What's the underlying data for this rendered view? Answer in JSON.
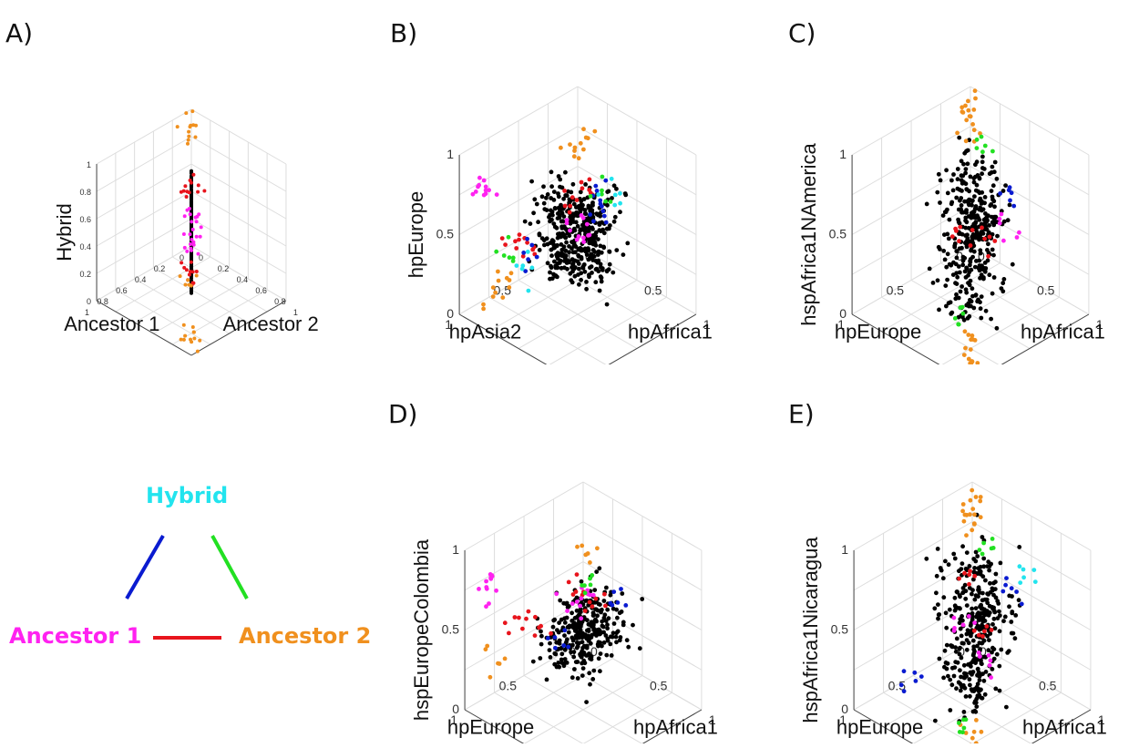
{
  "colors": {
    "black": "#000000",
    "red": "#e8141c",
    "magenta": "#ff22f0",
    "orange": "#f0901e",
    "blue": "#0a1bd0",
    "green": "#22e022",
    "cyan": "#22e4ee",
    "grid": "#dddddd",
    "axis": "#444444"
  },
  "panels": {
    "A": {
      "letter": "A)",
      "zlabel": "Hybrid",
      "xlabel": "Ancestor 1",
      "ylabel": "Ancestor 2",
      "zticks": [
        "0",
        "0.2",
        "0.4",
        "0.6",
        "0.8",
        "1"
      ],
      "xticks": [
        "0",
        "0.2",
        "0.4",
        "0.6",
        "0.8",
        "1"
      ],
      "yticks": [
        "0",
        "0.2",
        "0.4",
        "0.6",
        "0.8",
        "1"
      ]
    },
    "B": {
      "letter": "B)",
      "zlabel": "hpEurope",
      "xlabel": "hpAsia2",
      "ylabel": "hpAfrica1",
      "zticks": [
        "0",
        "0.5",
        "1"
      ],
      "xticks": [
        "0",
        "0.5",
        "1"
      ],
      "yticks": [
        "0",
        "0.5",
        "1"
      ]
    },
    "C": {
      "letter": "C)",
      "zlabel": "hspAfrica1NAmerica",
      "xlabel": "hpEurope",
      "ylabel": "hpAfrica1",
      "zticks": [
        "0",
        "0.5",
        "1"
      ],
      "xticks": [
        "0",
        "0.5",
        "1"
      ],
      "yticks": [
        "0",
        "0.5",
        "1"
      ]
    },
    "D": {
      "letter": "D)",
      "zlabel": "hspEuropeColombia",
      "xlabel": "hpEurope",
      "ylabel": "hpAfrica1",
      "zticks": [
        "0",
        "0.5",
        "1"
      ],
      "xticks": [
        "0",
        "0.5",
        "1"
      ],
      "yticks": [
        "0",
        "0.5",
        "1"
      ]
    },
    "E": {
      "letter": "E)",
      "zlabel": "hspAfrica1Nicaragua",
      "xlabel": "hpEurope",
      "ylabel": "hpAfrica1",
      "zticks": [
        "0",
        "0.5",
        "1"
      ],
      "xticks": [
        "0",
        "0.5",
        "1"
      ],
      "yticks": [
        "0",
        "0.5",
        "1"
      ]
    }
  },
  "legend": {
    "hybrid": "Hybrid",
    "ancestor1": "Ancestor 1",
    "ancestor2": "Ancestor 2"
  },
  "chart_data": [
    {
      "panel": "A",
      "type": "scatter",
      "subtype": "3d-scatter",
      "x_label": "Ancestor 1",
      "y_label": "Ancestor 2",
      "z_label": "Hybrid",
      "xlim": [
        0,
        1
      ],
      "ylim": [
        0,
        1
      ],
      "zlim": [
        0,
        1
      ],
      "grid": true,
      "series": [
        {
          "color": "black",
          "points": [
            [
              0.45,
              0.45,
              0.5
            ],
            [
              0.5,
              0.5,
              0.5
            ],
            [
              0.55,
              0.55,
              0.5
            ],
            [
              0.3,
              0.3,
              0.5
            ],
            [
              0.7,
              0.7,
              0.5
            ],
            [
              0.4,
              0.4,
              0.6
            ],
            [
              0.6,
              0.6,
              0.4
            ],
            [
              0.35,
              0.35,
              0.7
            ],
            [
              0.65,
              0.65,
              0.3
            ],
            [
              0.3,
              0.3,
              0.35
            ],
            [
              0.7,
              0.7,
              0.65
            ]
          ]
        },
        {
          "color": "red",
          "points": [
            [
              0.1,
              0.1,
              0.5
            ],
            [
              0.15,
              0.15,
              0.5
            ],
            [
              0.85,
              0.85,
              0.5
            ],
            [
              0.9,
              0.9,
              0.5
            ]
          ]
        },
        {
          "color": "magenta",
          "points": [
            [
              0.05,
              0.05,
              0.05
            ],
            [
              0.1,
              0.1,
              0.1
            ],
            [
              0.9,
              0.9,
              0.9
            ],
            [
              0.95,
              0.95,
              0.95
            ]
          ]
        },
        {
          "color": "orange",
          "points": [
            [
              0.05,
              0.05,
              0.95
            ],
            [
              0.1,
              0.1,
              0.9
            ],
            [
              0.9,
              0.9,
              0.1
            ],
            [
              0.95,
              0.95,
              0.05
            ],
            [
              0.95,
              0.95,
              0.5
            ]
          ]
        }
      ]
    },
    {
      "panel": "B",
      "type": "scatter",
      "subtype": "3d-scatter",
      "x_label": "hpAsia2",
      "y_label": "hpAfrica1",
      "z_label": "hpEurope",
      "xlim": [
        0,
        1
      ],
      "ylim": [
        0,
        1
      ],
      "zlim": [
        0,
        1
      ],
      "grid": true,
      "series": [
        {
          "color": "black",
          "points": [
            [
              0.5,
              0.5,
              0.5
            ],
            [
              0.45,
              0.55,
              0.6
            ],
            [
              0.55,
              0.45,
              0.4
            ],
            [
              0.4,
              0.5,
              0.55
            ],
            [
              0.6,
              0.5,
              0.45
            ],
            [
              0.5,
              0.4,
              0.65
            ],
            [
              0.5,
              0.6,
              0.35
            ]
          ]
        },
        {
          "color": "red",
          "points": [
            [
              0.2,
              0.3,
              0.6
            ],
            [
              0.25,
              0.2,
              0.5
            ],
            [
              0.7,
              0.3,
              0.4
            ],
            [
              0.75,
              0.25,
              0.45
            ]
          ]
        },
        {
          "color": "magenta",
          "points": [
            [
              0.05,
              0.1,
              0.1
            ],
            [
              0.1,
              0.05,
              0.2
            ],
            [
              0.9,
              0.1,
              0.8
            ],
            [
              0.85,
              0.05,
              0.7
            ]
          ]
        },
        {
          "color": "orange",
          "points": [
            [
              0.1,
              0.2,
              0.8
            ],
            [
              0.15,
              0.15,
              0.7
            ],
            [
              0.8,
              0.2,
              0.2
            ],
            [
              0.85,
              0.15,
              0.1
            ]
          ]
        },
        {
          "color": "blue",
          "points": [
            [
              0.6,
              0.8,
              0.9
            ],
            [
              0.65,
              0.85,
              0.85
            ],
            [
              0.5,
              0.1,
              0.2
            ]
          ]
        },
        {
          "color": "green",
          "points": [
            [
              0.55,
              0.75,
              0.9
            ],
            [
              0.7,
              0.15,
              0.3
            ]
          ]
        },
        {
          "color": "cyan",
          "points": [
            [
              0.6,
              0.9,
              0.95
            ],
            [
              0.5,
              0.05,
              0.1
            ]
          ]
        }
      ]
    },
    {
      "panel": "C",
      "type": "scatter",
      "subtype": "3d-scatter",
      "x_label": "hpEurope",
      "y_label": "hpAfrica1",
      "z_label": "hspAfrica1NAmerica",
      "xlim": [
        0,
        1
      ],
      "ylim": [
        0,
        1
      ],
      "zlim": [
        0,
        1
      ],
      "grid": true,
      "series": [
        {
          "color": "black",
          "points": [
            [
              0.5,
              0.5,
              0.5
            ],
            [
              0.4,
              0.4,
              0.6
            ],
            [
              0.6,
              0.6,
              0.4
            ],
            [
              0.45,
              0.55,
              0.55
            ],
            [
              0.3,
              0.3,
              0.7
            ],
            [
              0.7,
              0.7,
              0.3
            ]
          ]
        },
        {
          "color": "orange",
          "points": [
            [
              0.05,
              0.05,
              0.95
            ],
            [
              0.1,
              0.1,
              0.9
            ],
            [
              0.15,
              0.15,
              0.85
            ],
            [
              0.9,
              0.9,
              0.1
            ],
            [
              0.95,
              0.95,
              0.05
            ],
            [
              0.85,
              0.85,
              0.15
            ]
          ]
        },
        {
          "color": "green",
          "points": [
            [
              0.2,
              0.3,
              0.85
            ],
            [
              0.8,
              0.7,
              0.2
            ]
          ]
        },
        {
          "color": "blue",
          "points": [
            [
              0.5,
              0.8,
              0.9
            ]
          ]
        },
        {
          "color": "magenta",
          "points": [
            [
              0.6,
              0.9,
              0.75
            ]
          ]
        },
        {
          "color": "red",
          "points": [
            [
              0.3,
              0.2,
              0.3
            ],
            [
              0.7,
              0.8,
              0.7
            ]
          ]
        }
      ]
    },
    {
      "panel": "D",
      "type": "scatter",
      "subtype": "3d-scatter",
      "x_label": "hpEurope",
      "y_label": "hpAfrica1",
      "z_label": "hspEuropeColombia",
      "xlim": [
        0,
        1
      ],
      "ylim": [
        0,
        1
      ],
      "zlim": [
        0,
        1
      ],
      "grid": true,
      "series": [
        {
          "color": "black",
          "points": [
            [
              0.5,
              0.5,
              0.5
            ],
            [
              0.45,
              0.55,
              0.55
            ],
            [
              0.55,
              0.45,
              0.45
            ],
            [
              0.4,
              0.5,
              0.6
            ],
            [
              0.6,
              0.5,
              0.4
            ]
          ]
        },
        {
          "color": "red",
          "points": [
            [
              0.2,
              0.3,
              0.45
            ],
            [
              0.25,
              0.2,
              0.5
            ],
            [
              0.7,
              0.3,
              0.5
            ],
            [
              0.75,
              0.25,
              0.55
            ]
          ]
        },
        {
          "color": "magenta",
          "points": [
            [
              0.05,
              0.1,
              0.4
            ],
            [
              0.1,
              0.05,
              0.3
            ],
            [
              0.9,
              0.1,
              0.8
            ],
            [
              0.85,
              0.05,
              0.7
            ]
          ]
        },
        {
          "color": "orange",
          "points": [
            [
              0.15,
              0.2,
              0.7
            ],
            [
              0.85,
              0.15,
              0.3
            ]
          ]
        },
        {
          "color": "blue",
          "points": [
            [
              0.6,
              0.85,
              0.9
            ],
            [
              0.3,
              0.1,
              0.2
            ]
          ]
        },
        {
          "color": "green",
          "points": [
            [
              0.35,
              0.4,
              0.7
            ]
          ]
        }
      ]
    },
    {
      "panel": "E",
      "type": "scatter",
      "subtype": "3d-scatter",
      "x_label": "hpEurope",
      "y_label": "hpAfrica1",
      "z_label": "hspAfrica1Nicaragua",
      "xlim": [
        0,
        1
      ],
      "ylim": [
        0,
        1
      ],
      "zlim": [
        0,
        1
      ],
      "grid": true,
      "series": [
        {
          "color": "black",
          "points": [
            [
              0.5,
              0.5,
              0.5
            ],
            [
              0.4,
              0.4,
              0.6
            ],
            [
              0.6,
              0.6,
              0.4
            ],
            [
              0.45,
              0.55,
              0.55
            ],
            [
              0.3,
              0.3,
              0.7
            ],
            [
              0.7,
              0.7,
              0.3
            ]
          ]
        },
        {
          "color": "orange",
          "points": [
            [
              0.05,
              0.05,
              0.95
            ],
            [
              0.1,
              0.1,
              0.9
            ],
            [
              0.15,
              0.15,
              0.85
            ],
            [
              0.9,
              0.9,
              0.1
            ],
            [
              0.95,
              0.95,
              0.05
            ],
            [
              0.85,
              0.85,
              0.15
            ]
          ]
        },
        {
          "color": "green",
          "points": [
            [
              0.3,
              0.4,
              0.9
            ],
            [
              0.8,
              0.7,
              0.15
            ]
          ]
        },
        {
          "color": "blue",
          "points": [
            [
              0.5,
              0.8,
              0.85
            ],
            [
              0.7,
              0.2,
              0.1
            ]
          ]
        },
        {
          "color": "magenta",
          "points": [
            [
              0.2,
              0.1,
              0.25
            ],
            [
              0.8,
              0.9,
              0.6
            ]
          ]
        },
        {
          "color": "red",
          "points": [
            [
              0.25,
              0.2,
              0.6
            ],
            [
              0.7,
              0.8,
              0.7
            ]
          ]
        },
        {
          "color": "cyan",
          "points": [
            [
              0.45,
              0.9,
              0.98
            ]
          ]
        }
      ]
    }
  ]
}
